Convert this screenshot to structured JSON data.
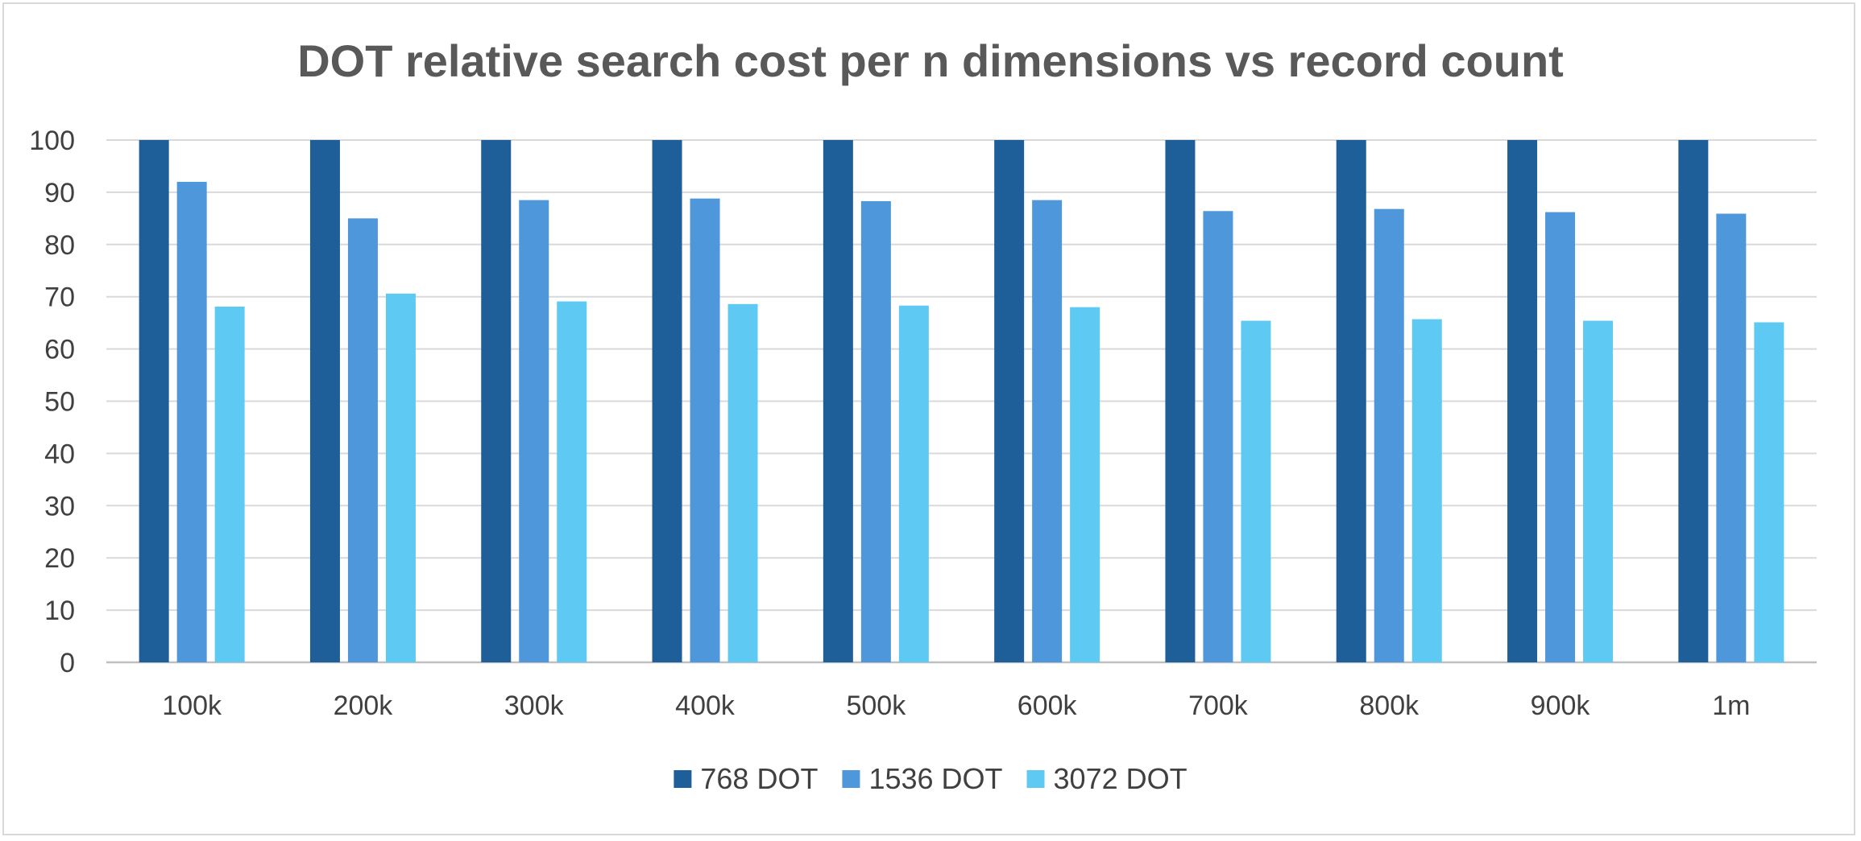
{
  "chart_data": {
    "type": "bar",
    "title": "DOT relative search cost per n dimensions vs record count",
    "xlabel": "",
    "ylabel": "",
    "categories": [
      "100k",
      "200k",
      "300k",
      "400k",
      "500k",
      "600k",
      "700k",
      "800k",
      "900k",
      "1m"
    ],
    "yticks": [
      "0",
      "10",
      "20",
      "30",
      "40",
      "50",
      "60",
      "70",
      "80",
      "90",
      "100"
    ],
    "ylim": [
      0,
      100
    ],
    "grid": true,
    "legend_position": "bottom",
    "series": [
      {
        "name": "768 DOT",
        "color": "#1f5f99",
        "values": [
          100,
          100,
          100,
          100,
          100,
          100,
          100,
          100,
          100,
          100
        ]
      },
      {
        "name": "1536 DOT",
        "color": "#4f97db",
        "values": [
          92,
          85,
          88.5,
          88.8,
          88.3,
          88.5,
          86.4,
          86.8,
          86.2,
          85.9
        ]
      },
      {
        "name": "3072 DOT",
        "color": "#5ec9f2",
        "values": [
          68.1,
          70.6,
          69.1,
          68.6,
          68.3,
          68,
          65.4,
          65.7,
          65.4,
          65.1
        ]
      }
    ]
  }
}
